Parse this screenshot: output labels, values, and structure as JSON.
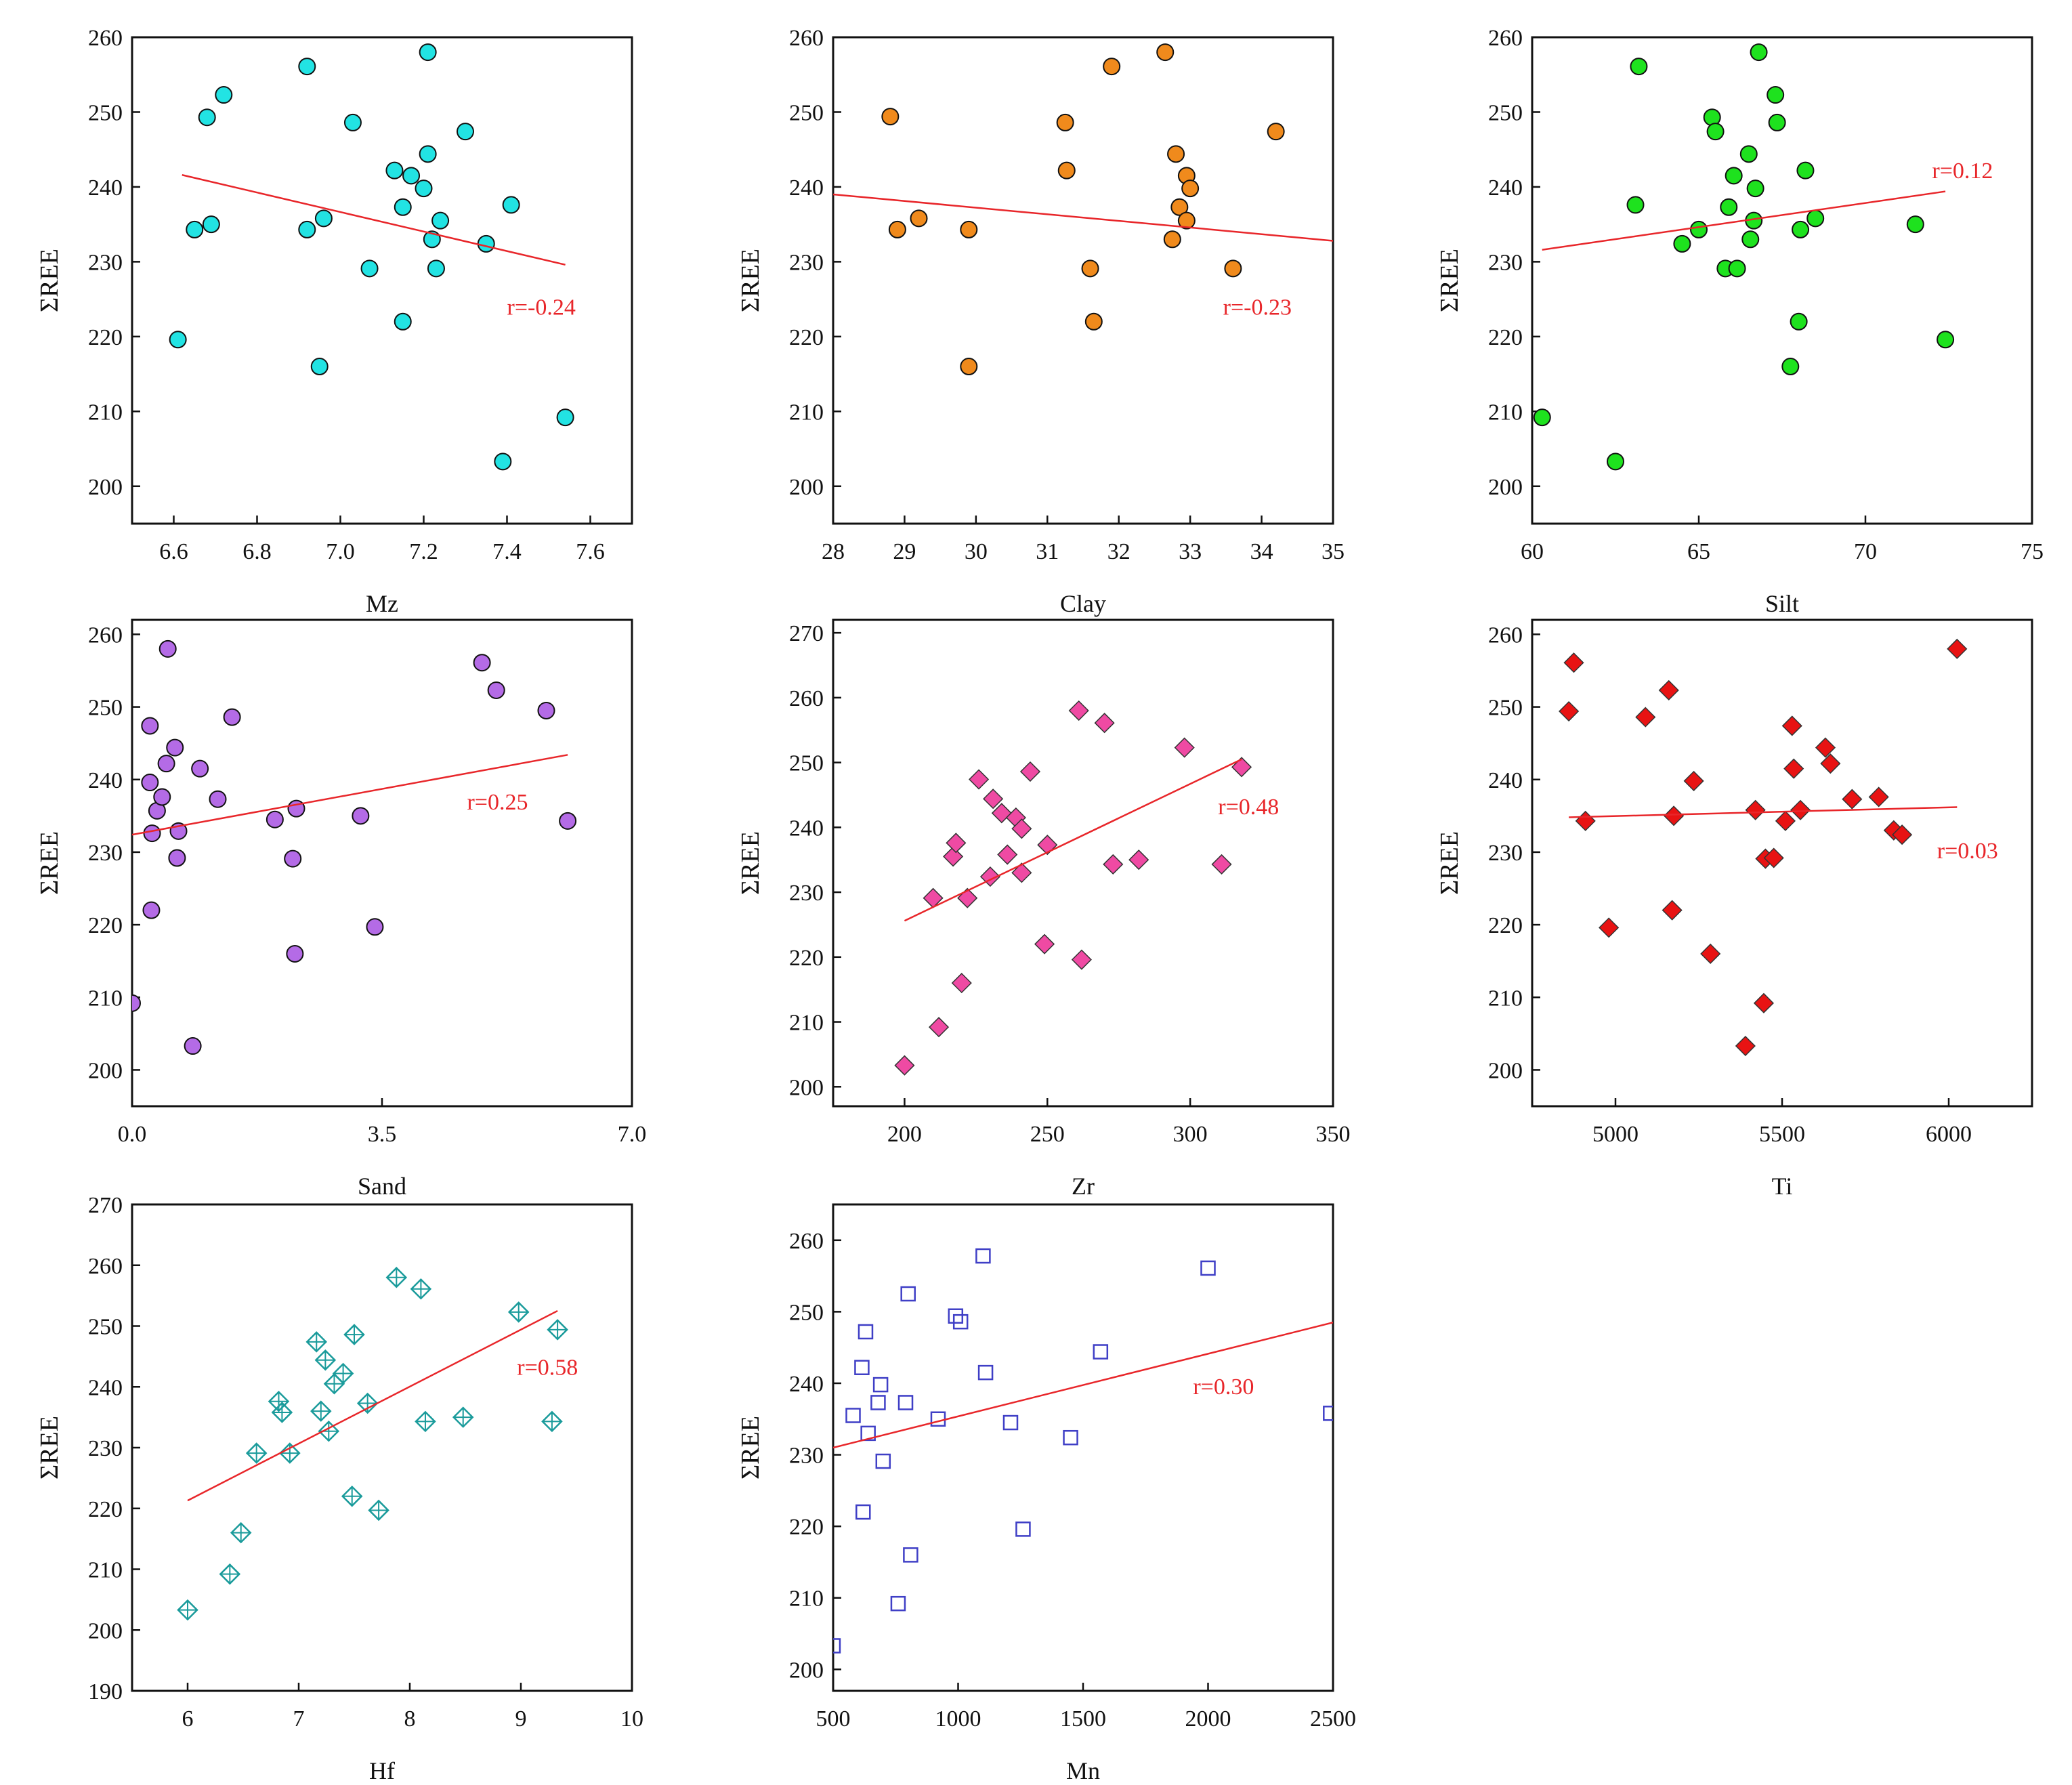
{
  "figure": {
    "ylabel": "ΣREE"
  },
  "chart_data": [
    {
      "type": "scatter",
      "id": "mz",
      "xlabel": "Mz",
      "ylabel": "ΣREE",
      "xlim": [
        6.5,
        7.7
      ],
      "ylim": [
        195,
        260
      ],
      "xticks": [
        6.6,
        6.8,
        7.0,
        7.2,
        7.4,
        7.6
      ],
      "xtick_labels": [
        "6.6",
        "6.8",
        "7.0",
        "7.2",
        "7.4",
        "7.6"
      ],
      "yticks": [
        200,
        210,
        220,
        230,
        240,
        250,
        260
      ],
      "marker": "circle",
      "color": "#22e3e3",
      "points": [
        [
          6.61,
          219.6
        ],
        [
          6.65,
          234.3
        ],
        [
          6.68,
          249.3
        ],
        [
          6.69,
          235.0
        ],
        [
          6.72,
          252.3
        ],
        [
          6.92,
          234.3
        ],
        [
          6.92,
          256.1
        ],
        [
          6.95,
          216.0
        ],
        [
          6.96,
          235.8
        ],
        [
          7.03,
          248.6
        ],
        [
          7.07,
          229.1
        ],
        [
          7.13,
          242.2
        ],
        [
          7.15,
          237.3
        ],
        [
          7.15,
          222.0
        ],
        [
          7.17,
          241.5
        ],
        [
          7.2,
          239.8
        ],
        [
          7.21,
          258.0
        ],
        [
          7.21,
          244.4
        ],
        [
          7.22,
          233.0
        ],
        [
          7.23,
          229.1
        ],
        [
          7.24,
          235.5
        ],
        [
          7.3,
          247.4
        ],
        [
          7.35,
          232.4
        ],
        [
          7.39,
          203.3
        ],
        [
          7.41,
          237.6
        ],
        [
          7.54,
          209.2
        ]
      ],
      "trend": {
        "x1": 6.62,
        "y1": 241.6,
        "x2": 7.54,
        "y2": 229.6
      },
      "annotation": "r=-0.24"
    },
    {
      "type": "scatter",
      "id": "clay",
      "xlabel": "Clay",
      "ylabel": "ΣREE",
      "xlim": [
        28,
        35
      ],
      "ylim": [
        195,
        260
      ],
      "xticks": [
        28,
        29,
        30,
        31,
        32,
        33,
        34,
        35
      ],
      "xtick_labels": [
        "28",
        "29",
        "30",
        "31",
        "32",
        "33",
        "34",
        "35"
      ],
      "yticks": [
        200,
        210,
        220,
        230,
        240,
        250,
        260
      ],
      "marker": "circle",
      "color": "#f08a1c",
      "points": [
        [
          28.8,
          249.4
        ],
        [
          28.9,
          234.3
        ],
        [
          29.2,
          235.8
        ],
        [
          29.9,
          234.3
        ],
        [
          29.9,
          216.0
        ],
        [
          31.25,
          248.6
        ],
        [
          31.27,
          242.2
        ],
        [
          31.6,
          229.1
        ],
        [
          31.65,
          222.0
        ],
        [
          31.9,
          256.1
        ],
        [
          32.65,
          258.0
        ],
        [
          32.75,
          233.0
        ],
        [
          32.8,
          244.4
        ],
        [
          32.85,
          237.3
        ],
        [
          32.95,
          241.5
        ],
        [
          32.95,
          235.5
        ],
        [
          33.0,
          239.8
        ],
        [
          33.6,
          229.1
        ],
        [
          34.2,
          247.4
        ]
      ],
      "trend": {
        "x1": 28.0,
        "y1": 239.0,
        "x2": 35.0,
        "y2": 232.8
      },
      "annotation": "r=-0.23"
    },
    {
      "type": "scatter",
      "id": "silt",
      "xlabel": "Silt",
      "ylabel": "ΣREE",
      "xlim": [
        60,
        75
      ],
      "ylim": [
        195,
        260
      ],
      "xticks": [
        60,
        65,
        70,
        75
      ],
      "xtick_labels": [
        "60",
        "65",
        "70",
        "75"
      ],
      "yticks": [
        200,
        210,
        220,
        230,
        240,
        250,
        260
      ],
      "marker": "circle",
      "color": "#1ee21e",
      "points": [
        [
          60.3,
          209.2
        ],
        [
          62.5,
          203.3
        ],
        [
          63.1,
          237.6
        ],
        [
          63.2,
          256.1
        ],
        [
          64.5,
          232.4
        ],
        [
          65.0,
          234.3
        ],
        [
          65.4,
          249.3
        ],
        [
          65.5,
          247.4
        ],
        [
          65.8,
          229.1
        ],
        [
          65.9,
          237.3
        ],
        [
          66.05,
          241.5
        ],
        [
          66.15,
          229.1
        ],
        [
          66.5,
          244.4
        ],
        [
          66.55,
          233.0
        ],
        [
          66.65,
          235.5
        ],
        [
          66.7,
          239.8
        ],
        [
          66.8,
          258.0
        ],
        [
          67.3,
          252.3
        ],
        [
          67.35,
          248.6
        ],
        [
          67.75,
          216.0
        ],
        [
          68.0,
          222.0
        ],
        [
          68.05,
          234.3
        ],
        [
          68.2,
          242.2
        ],
        [
          68.5,
          235.8
        ],
        [
          71.5,
          235.0
        ],
        [
          72.4,
          219.6
        ]
      ],
      "trend": {
        "x1": 60.3,
        "y1": 231.6,
        "x2": 72.4,
        "y2": 239.4
      },
      "annotation": "r=0.12"
    },
    {
      "type": "scatter",
      "id": "sand",
      "xlabel": "Sand",
      "ylabel": "ΣREE",
      "xlim": [
        0,
        7
      ],
      "ylim": [
        195,
        262
      ],
      "xticks": [
        0,
        3.5,
        7.0
      ],
      "xtick_labels": [
        "0.0",
        "3.5",
        "7.0"
      ],
      "yticks": [
        200,
        210,
        220,
        230,
        240,
        250,
        260
      ],
      "marker": "circle",
      "color": "#b46be6",
      "points": [
        [
          0.0,
          209.2
        ],
        [
          0.25,
          247.4
        ],
        [
          0.25,
          239.6
        ],
        [
          0.27,
          222.0
        ],
        [
          0.28,
          232.6
        ],
        [
          0.35,
          235.7
        ],
        [
          0.42,
          237.6
        ],
        [
          0.48,
          242.2
        ],
        [
          0.5,
          258.0
        ],
        [
          0.6,
          244.4
        ],
        [
          0.63,
          229.2
        ],
        [
          0.65,
          232.9
        ],
        [
          0.85,
          203.3
        ],
        [
          0.95,
          241.5
        ],
        [
          1.2,
          237.3
        ],
        [
          1.4,
          248.6
        ],
        [
          2.0,
          234.5
        ],
        [
          2.25,
          229.1
        ],
        [
          2.28,
          216.0
        ],
        [
          2.3,
          236.0
        ],
        [
          3.2,
          235.0
        ],
        [
          3.4,
          219.7
        ],
        [
          4.9,
          256.1
        ],
        [
          5.1,
          252.3
        ],
        [
          5.8,
          249.5
        ],
        [
          6.1,
          234.3
        ]
      ],
      "trend": {
        "x1": 0.0,
        "y1": 232.4,
        "x2": 6.1,
        "y2": 243.4
      },
      "annotation": "r=0.25"
    },
    {
      "type": "scatter",
      "id": "zr",
      "xlabel": "Zr",
      "ylabel": "ΣREE",
      "xlim": [
        175,
        350
      ],
      "ylim": [
        197,
        272
      ],
      "xticks": [
        200,
        250,
        300,
        350
      ],
      "xtick_labels": [
        "200",
        "250",
        "300",
        "350"
      ],
      "yticks": [
        200,
        210,
        220,
        230,
        240,
        250,
        260,
        270
      ],
      "marker": "diamond",
      "color": "#ef4aa3",
      "points": [
        [
          200,
          203.3
        ],
        [
          210,
          229.1
        ],
        [
          212,
          209.2
        ],
        [
          217,
          235.5
        ],
        [
          218,
          237.6
        ],
        [
          220,
          216.0
        ],
        [
          222,
          229.1
        ],
        [
          226,
          247.4
        ],
        [
          230,
          232.4
        ],
        [
          231,
          244.4
        ],
        [
          234,
          242.2
        ],
        [
          236,
          235.8
        ],
        [
          239,
          241.5
        ],
        [
          241,
          239.8
        ],
        [
          241,
          233.0
        ],
        [
          244,
          248.6
        ],
        [
          249,
          222.0
        ],
        [
          250,
          237.3
        ],
        [
          261,
          258.0
        ],
        [
          262,
          219.6
        ],
        [
          270,
          256.1
        ],
        [
          273,
          234.3
        ],
        [
          282,
          235.0
        ],
        [
          298,
          252.3
        ],
        [
          311,
          234.3
        ],
        [
          318,
          249.3
        ]
      ],
      "trend": {
        "x1": 200,
        "y1": 225.6,
        "x2": 318,
        "y2": 250.5
      },
      "annotation": "r=0.48"
    },
    {
      "type": "scatter",
      "id": "ti",
      "xlabel": "Ti",
      "ylabel": "ΣREE",
      "xlim": [
        4750,
        6250
      ],
      "ylim": [
        195,
        262
      ],
      "xticks": [
        5000,
        5500,
        6000
      ],
      "xtick_labels": [
        "5000",
        "5500",
        "6000"
      ],
      "yticks": [
        200,
        210,
        220,
        230,
        240,
        250,
        260
      ],
      "marker": "diamond",
      "color": "#e81313",
      "points": [
        [
          4860,
          249.4
        ],
        [
          4875,
          256.1
        ],
        [
          4910,
          234.3
        ],
        [
          4980,
          219.6
        ],
        [
          5090,
          248.6
        ],
        [
          5160,
          252.3
        ],
        [
          5175,
          235.0
        ],
        [
          5170,
          222.0
        ],
        [
          5235,
          239.8
        ],
        [
          5285,
          216.0
        ],
        [
          5390,
          203.3
        ],
        [
          5420,
          235.8
        ],
        [
          5445,
          209.2
        ],
        [
          5450,
          229.1
        ],
        [
          5475,
          229.2
        ],
        [
          5510,
          234.3
        ],
        [
          5530,
          247.4
        ],
        [
          5535,
          241.5
        ],
        [
          5555,
          235.8
        ],
        [
          5630,
          244.4
        ],
        [
          5645,
          242.2
        ],
        [
          5710,
          237.3
        ],
        [
          5790,
          237.6
        ],
        [
          5835,
          233.0
        ],
        [
          5860,
          232.4
        ],
        [
          6025,
          258.0
        ]
      ],
      "trend": {
        "x1": 4860,
        "y1": 234.8,
        "x2": 6025,
        "y2": 236.2
      },
      "annotation": "r=0.03"
    },
    {
      "type": "scatter",
      "id": "hf",
      "xlabel": "Hf",
      "ylabel": "ΣREE",
      "xlim": [
        5.5,
        10
      ],
      "ylim": [
        190,
        270
      ],
      "xticks": [
        6,
        7,
        8,
        9,
        10
      ],
      "xtick_labels": [
        "6",
        "7",
        "8",
        "9",
        "10"
      ],
      "yticks": [
        190,
        200,
        210,
        220,
        230,
        240,
        250,
        260,
        270
      ],
      "marker": "diamond-cross",
      "color": "#1a9b9b",
      "points": [
        [
          6.0,
          203.3
        ],
        [
          6.38,
          209.2
        ],
        [
          6.48,
          216.0
        ],
        [
          6.62,
          229.1
        ],
        [
          6.82,
          237.6
        ],
        [
          6.85,
          235.8
        ],
        [
          6.92,
          229.1
        ],
        [
          7.16,
          247.4
        ],
        [
          7.2,
          236.0
        ],
        [
          7.24,
          244.4
        ],
        [
          7.27,
          232.7
        ],
        [
          7.32,
          240.5
        ],
        [
          7.4,
          242.2
        ],
        [
          7.48,
          222.0
        ],
        [
          7.5,
          248.6
        ],
        [
          7.62,
          237.3
        ],
        [
          7.72,
          219.7
        ],
        [
          7.88,
          258.0
        ],
        [
          8.1,
          256.1
        ],
        [
          8.14,
          234.3
        ],
        [
          8.48,
          235.0
        ],
        [
          8.98,
          252.3
        ],
        [
          9.28,
          234.3
        ],
        [
          9.33,
          249.4
        ]
      ],
      "trend": {
        "x1": 6.0,
        "y1": 221.3,
        "x2": 9.33,
        "y2": 252.5
      },
      "annotation": "r=0.58"
    },
    {
      "type": "scatter",
      "id": "mn",
      "xlabel": "Mn",
      "ylabel": "ΣREE",
      "xlim": [
        500,
        2500
      ],
      "ylim": [
        197,
        265
      ],
      "xticks": [
        500,
        1000,
        1500,
        2000,
        2500
      ],
      "xtick_labels": [
        "500",
        "1000",
        "1500",
        "2000",
        "2500"
      ],
      "yticks": [
        200,
        210,
        220,
        230,
        240,
        250,
        260
      ],
      "marker": "square",
      "color": "#3f3fc6",
      "points": [
        [
          500,
          203.3
        ],
        [
          580,
          235.5
        ],
        [
          615,
          242.2
        ],
        [
          620,
          222.0
        ],
        [
          630,
          247.2
        ],
        [
          640,
          233.0
        ],
        [
          680,
          237.3
        ],
        [
          690,
          239.8
        ],
        [
          700,
          229.1
        ],
        [
          760,
          209.2
        ],
        [
          790,
          237.3
        ],
        [
          800,
          252.5
        ],
        [
          810,
          216.0
        ],
        [
          920,
          235.0
        ],
        [
          990,
          249.4
        ],
        [
          1010,
          248.6
        ],
        [
          1100,
          257.8
        ],
        [
          1110,
          241.5
        ],
        [
          1210,
          234.5
        ],
        [
          1260,
          219.6
        ],
        [
          1450,
          232.4
        ],
        [
          1570,
          244.4
        ],
        [
          2000,
          256.1
        ],
        [
          2490,
          235.8
        ]
      ],
      "trend": {
        "x1": 500,
        "y1": 231.0,
        "x2": 2500,
        "y2": 248.5
      },
      "annotation": "r=0.30"
    }
  ]
}
